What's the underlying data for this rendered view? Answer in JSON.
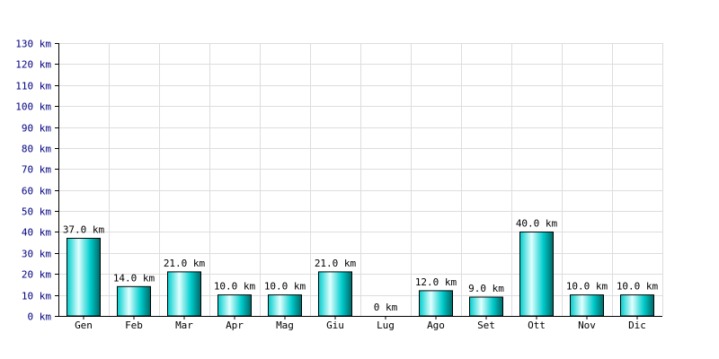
{
  "chart_data": {
    "type": "bar",
    "categories": [
      "Gen",
      "Feb",
      "Mar",
      "Apr",
      "Mag",
      "Giu",
      "Lug",
      "Ago",
      "Set",
      "Ott",
      "Nov",
      "Dic"
    ],
    "values": [
      37,
      14,
      21,
      10,
      10,
      21,
      0,
      12,
      9,
      40,
      10,
      10
    ],
    "data_labels": [
      "37.0 km",
      "14.0 km",
      "21.0 km",
      "10.0 km",
      "10.0 km",
      "21.0 km",
      "0 km",
      "12.0 km",
      "9.0 km",
      "40.0 km",
      "10.0 km",
      "10.0 km"
    ],
    "y_ticks": [
      0,
      10,
      20,
      30,
      40,
      50,
      60,
      70,
      80,
      90,
      100,
      110,
      120,
      130
    ],
    "y_tick_labels": [
      "0 km",
      "10 km",
      "20 km",
      "30 km",
      "40 km",
      "50 km",
      "60 km",
      "70 km",
      "80 km",
      "90 km",
      "100 km",
      "110 km",
      "120 km",
      "130 km"
    ],
    "ylim": [
      0,
      130
    ],
    "grid": true,
    "colors": {
      "bar_light": "#e0ffff",
      "bar_mid": "#00cccc",
      "bar_dark": "#006666",
      "bar_stroke": "#000000",
      "grid": "#dddddd",
      "axis": "#000000",
      "y_tick_text": "#000080"
    }
  }
}
